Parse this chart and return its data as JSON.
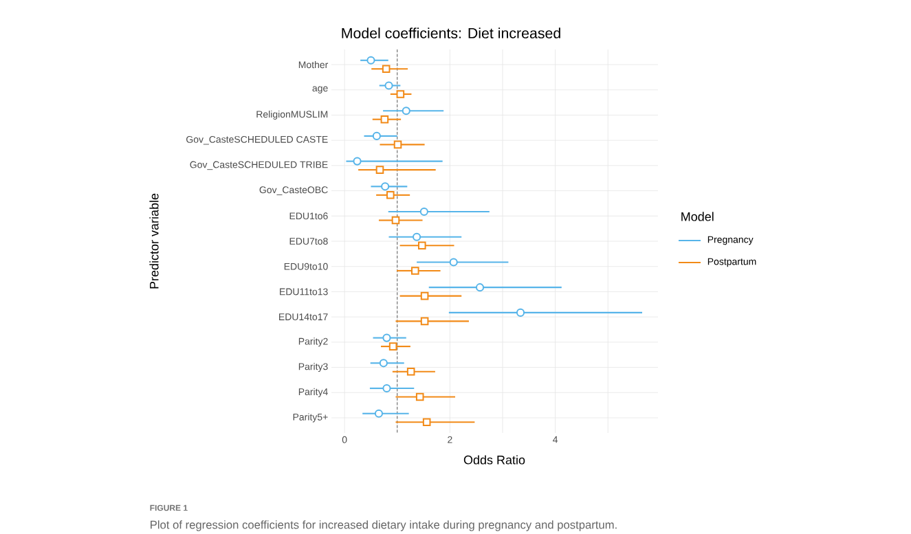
{
  "chart_data": {
    "type": "scatter",
    "orientation": "horizontal",
    "title": "Model coefficients: Diet increased",
    "xlabel": "Odds Ratio",
    "ylabel": "Predictor variable",
    "legend_title": "Model",
    "categories": [
      "Mother",
      "age",
      "ReligionMUSLIM",
      "Gov_CasteSCHEDULED CASTE",
      "Gov_CasteSCHEDULED TRIBE",
      "Gov_CasteOBC",
      "EDU1to6",
      "EDU7to8",
      "EDU9to10",
      "EDU11to13",
      "EDU14to17",
      "Parity2",
      "Parity3",
      "Parity4",
      "Parity5+"
    ],
    "series": [
      {
        "name": "Pregnancy",
        "color": "#56b4e9",
        "marker": "circle",
        "values": [
          0.5,
          0.84,
          1.17,
          0.61,
          0.24,
          0.77,
          1.51,
          1.37,
          2.07,
          2.57,
          3.34,
          0.8,
          0.74,
          0.8,
          0.65
        ],
        "errors": [
          [
            0.3,
            0.83
          ],
          [
            0.66,
            1.06
          ],
          [
            0.73,
            1.88
          ],
          [
            0.37,
            1.0
          ],
          [
            0.03,
            1.86
          ],
          [
            0.5,
            1.19
          ],
          [
            0.83,
            2.75
          ],
          [
            0.84,
            2.22
          ],
          [
            1.37,
            3.11
          ],
          [
            1.6,
            4.12
          ],
          [
            1.98,
            5.65
          ],
          [
            0.54,
            1.17
          ],
          [
            0.49,
            1.13
          ],
          [
            0.48,
            1.32
          ],
          [
            0.34,
            1.22
          ]
        ]
      },
      {
        "name": "Postpartum",
        "color": "#f28a17",
        "marker": "square",
        "values": [
          0.79,
          1.06,
          0.76,
          1.01,
          0.67,
          0.87,
          0.97,
          1.47,
          1.34,
          1.52,
          1.52,
          0.92,
          1.26,
          1.43,
          1.56
        ],
        "errors": [
          [
            0.51,
            1.2
          ],
          [
            0.87,
            1.27
          ],
          [
            0.53,
            1.07
          ],
          [
            0.67,
            1.52
          ],
          [
            0.26,
            1.73
          ],
          [
            0.6,
            1.24
          ],
          [
            0.65,
            1.48
          ],
          [
            1.05,
            2.08
          ],
          [
            0.99,
            1.82
          ],
          [
            1.05,
            2.22
          ],
          [
            0.97,
            2.36
          ],
          [
            0.69,
            1.25
          ],
          [
            0.91,
            1.72
          ],
          [
            0.97,
            2.1
          ],
          [
            0.97,
            2.47
          ]
        ]
      }
    ],
    "xlim": [
      -0.25,
      5.95
    ],
    "xticks": [
      0,
      {
        "value": 1,
        "label": null
      },
      2,
      {
        "value": 3,
        "label": null
      },
      4,
      {
        "value": 5,
        "label": null
      }
    ],
    "grid": true,
    "legend": "right",
    "ref_lines": [
      {
        "axis": "x",
        "value": 1,
        "color": "#333333",
        "line_style": "dashed"
      }
    ],
    "annotations": [
      "FIGURE 1",
      "Plot of regression coefficients for increased dietary intake during pregnancy and postpartum."
    ]
  }
}
